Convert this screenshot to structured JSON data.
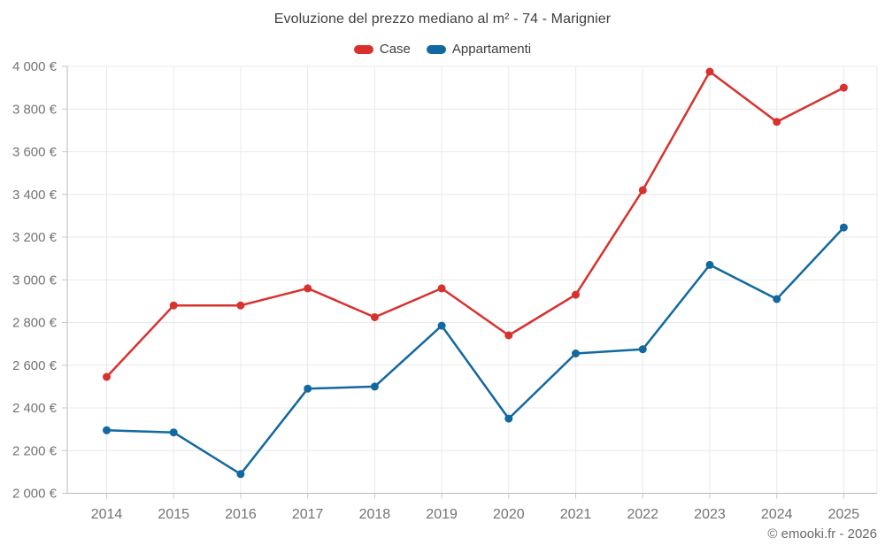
{
  "header": {
    "title": "Evoluzione del prezzo mediano al m² - 74 - Marignier"
  },
  "legend": {
    "items": [
      {
        "label": "Case",
        "color": "#d8312e"
      },
      {
        "label": "Appartamenti",
        "color": "#1268a0"
      }
    ]
  },
  "footer": {
    "credit": "© emooki.fr - 2026"
  },
  "chart_data": {
    "type": "line",
    "title": "Evoluzione del prezzo mediano al m² - 74 - Marignier",
    "categories": [
      "2014",
      "2015",
      "2016",
      "2017",
      "2018",
      "2019",
      "2020",
      "2021",
      "2022",
      "2023",
      "2024",
      "2025"
    ],
    "series": [
      {
        "name": "Case",
        "color": "#d8312e",
        "values": [
          2545,
          2880,
          2880,
          2960,
          2825,
          2960,
          2740,
          2930,
          3420,
          3975,
          3740,
          3900
        ]
      },
      {
        "name": "Appartamenti",
        "color": "#1268a0",
        "values": [
          2295,
          2285,
          2090,
          2490,
          2500,
          2785,
          2350,
          2655,
          2675,
          3070,
          2910,
          3245
        ]
      }
    ],
    "ylim": [
      2000,
      4000
    ],
    "ytick_step": 200,
    "y_tick_labels": [
      "2 000 €",
      "2 200 €",
      "2 400 €",
      "2 600 €",
      "2 800 €",
      "3 000 €",
      "3 200 €",
      "3 400 €",
      "3 600 €",
      "3 800 €",
      "4 000 €"
    ],
    "currency_suffix": "€",
    "grid": true,
    "legend_position": "top",
    "colors": {
      "grid_line": "#e9e9e9",
      "axis_line": "#b8b8b8",
      "tick_mark": "#c9c9c9",
      "tick_label": "#737373",
      "title_text": "#404040"
    }
  }
}
